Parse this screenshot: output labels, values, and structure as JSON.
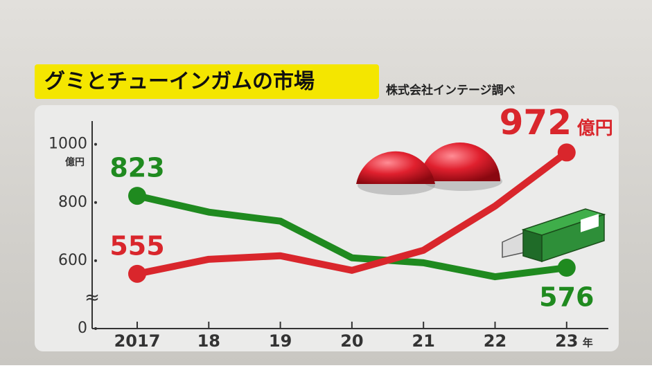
{
  "chart_data": {
    "type": "line",
    "title": "グミとチューインガムの市場",
    "source": "株式会社インテージ調べ",
    "unit": "億円",
    "x_unit": "年",
    "categories": [
      "2017",
      "18",
      "19",
      "20",
      "21",
      "22",
      "23"
    ],
    "series": [
      {
        "name": "チューインガム",
        "color": "#1f8a1f",
        "values": [
          823,
          767,
          736,
          610,
          593,
          545,
          576
        ],
        "value_labels": [
          "823",
          null,
          null,
          null,
          null,
          null,
          "576"
        ]
      },
      {
        "name": "グミ",
        "color": "#d9262c",
        "values": [
          555,
          605,
          617,
          567,
          636,
          788,
          972
        ],
        "value_labels": [
          "555",
          null,
          null,
          null,
          null,
          null,
          "972"
        ]
      }
    ],
    "ylim": [
      0,
      1080
    ],
    "y_break": [
      0,
      500
    ],
    "yticks": [
      0,
      600,
      800,
      1000
    ]
  }
}
